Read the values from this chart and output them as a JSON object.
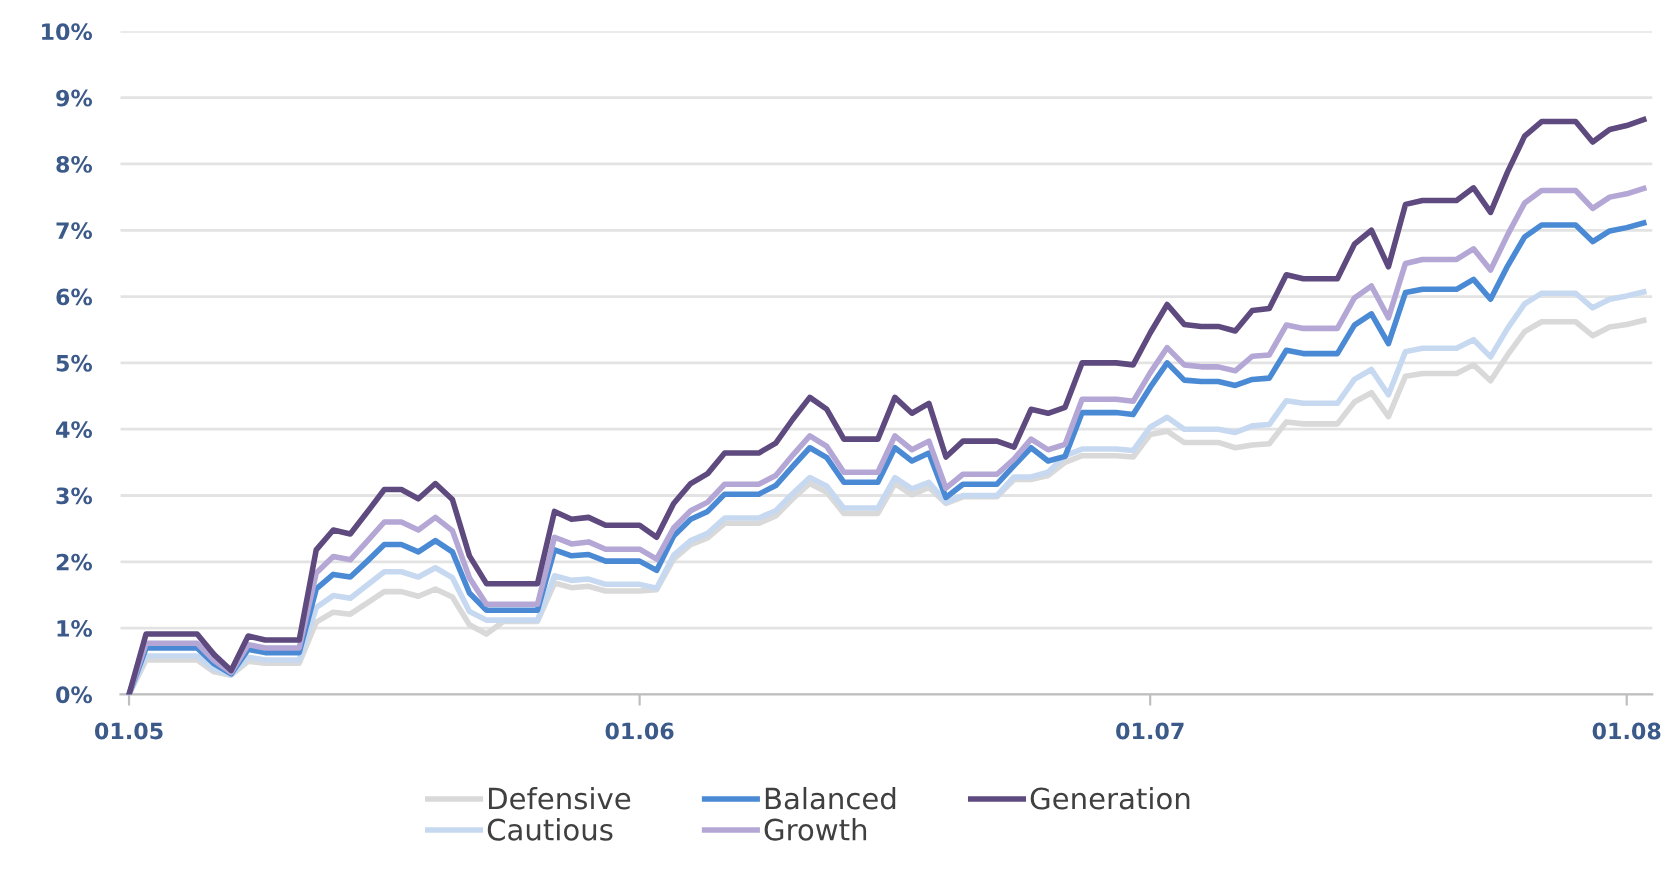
{
  "chart_data": {
    "type": "line",
    "categories": [
      "01.05",
      null,
      null,
      null,
      null,
      null,
      null,
      null,
      null,
      null,
      null,
      null,
      null,
      null,
      null,
      null,
      null,
      null,
      null,
      null,
      null,
      null,
      null,
      null,
      null,
      null,
      null,
      null,
      null,
      null,
      "01.06",
      null,
      null,
      null,
      null,
      null,
      null,
      null,
      null,
      null,
      null,
      null,
      null,
      null,
      null,
      null,
      null,
      null,
      null,
      null,
      null,
      null,
      null,
      null,
      null,
      null,
      null,
      null,
      null,
      null,
      "01.07",
      null,
      null,
      null,
      null,
      null,
      null,
      null,
      null,
      null,
      null,
      null,
      null,
      null,
      null,
      null,
      null,
      null,
      null,
      null,
      null,
      null,
      null,
      null,
      null,
      null,
      null,
      null,
      "01.08",
      null
    ],
    "ylim": [
      0,
      10
    ],
    "yticks": [
      {
        "value": 0,
        "label": "0%"
      },
      {
        "value": 1,
        "label": "1%"
      },
      {
        "value": 2,
        "label": "2%"
      },
      {
        "value": 3,
        "label": "3%"
      },
      {
        "value": 4,
        "label": "4%"
      },
      {
        "value": 5,
        "label": "5%"
      },
      {
        "value": 6,
        "label": "6%"
      },
      {
        "value": 7,
        "label": "7%"
      },
      {
        "value": 8,
        "label": "8%"
      },
      {
        "value": 9,
        "label": "9%"
      },
      {
        "value": 10,
        "label": "10%"
      }
    ],
    "grid": "y",
    "legend": "bottom",
    "marker": "none",
    "line_style": "solid",
    "series": [
      {
        "name": "Defensive",
        "color": "#d9d9d9",
        "values": [
          0,
          0.52,
          0.52,
          0.52,
          0.52,
          0.34,
          0.29,
          0.5,
          0.47,
          0.47,
          0.47,
          1.09,
          1.24,
          1.21,
          1.38,
          1.55,
          1.55,
          1.48,
          1.59,
          1.47,
          1.05,
          0.91,
          1.1,
          1.1,
          1.1,
          1.68,
          1.61,
          1.63,
          1.56,
          1.56,
          1.56,
          1.58,
          2.04,
          2.26,
          2.36,
          2.58,
          2.58,
          2.58,
          2.69,
          2.95,
          3.18,
          3.05,
          2.73,
          2.73,
          2.73,
          3.18,
          3.01,
          3.12,
          2.88,
          2.98,
          2.98,
          2.98,
          3.24,
          3.24,
          3.3,
          3.5,
          3.6,
          3.6,
          3.6,
          3.58,
          3.92,
          3.97,
          3.8,
          3.8,
          3.8,
          3.72,
          3.76,
          3.78,
          4.11,
          4.08,
          4.08,
          4.08,
          4.41,
          4.55,
          4.19,
          4.8,
          4.84,
          4.84,
          4.84,
          4.97,
          4.73,
          5.12,
          5.47,
          5.62,
          5.62,
          5.62,
          5.41,
          5.54,
          5.58,
          5.64
        ]
      },
      {
        "name": "Cautious",
        "color": "#c6d9f0",
        "values": [
          0,
          0.58,
          0.58,
          0.58,
          0.58,
          0.38,
          0.3,
          0.56,
          0.52,
          0.52,
          0.52,
          1.31,
          1.49,
          1.45,
          1.65,
          1.85,
          1.85,
          1.77,
          1.91,
          1.76,
          1.25,
          1.12,
          1.12,
          1.12,
          1.12,
          1.79,
          1.72,
          1.74,
          1.66,
          1.66,
          1.66,
          1.6,
          2.1,
          2.32,
          2.43,
          2.66,
          2.66,
          2.66,
          2.77,
          3.03,
          3.27,
          3.14,
          2.81,
          2.81,
          2.81,
          3.27,
          3.1,
          3.2,
          2.9,
          3.0,
          3.0,
          3.0,
          3.28,
          3.28,
          3.35,
          3.6,
          3.7,
          3.7,
          3.7,
          3.68,
          4.03,
          4.18,
          4.0,
          4.0,
          4.0,
          3.95,
          4.05,
          4.07,
          4.43,
          4.39,
          4.39,
          4.39,
          4.75,
          4.9,
          4.52,
          5.17,
          5.22,
          5.22,
          5.22,
          5.35,
          5.09,
          5.52,
          5.89,
          6.05,
          6.05,
          6.05,
          5.83,
          5.96,
          6.01,
          6.07
        ]
      },
      {
        "name": "Balanced",
        "color": "#4a8ad4",
        "values": [
          0,
          0.7,
          0.7,
          0.7,
          0.7,
          0.46,
          0.31,
          0.68,
          0.63,
          0.63,
          0.63,
          1.59,
          1.81,
          1.77,
          2.01,
          2.26,
          2.26,
          2.15,
          2.32,
          2.15,
          1.53,
          1.27,
          1.27,
          1.27,
          1.27,
          2.18,
          2.09,
          2.11,
          2.01,
          2.01,
          2.01,
          1.87,
          2.39,
          2.64,
          2.76,
          3.02,
          3.02,
          3.02,
          3.15,
          3.44,
          3.72,
          3.57,
          3.2,
          3.2,
          3.2,
          3.72,
          3.52,
          3.64,
          2.97,
          3.17,
          3.17,
          3.17,
          3.45,
          3.72,
          3.52,
          3.59,
          4.25,
          4.25,
          4.25,
          4.22,
          4.63,
          5.0,
          4.74,
          4.72,
          4.72,
          4.66,
          4.75,
          4.77,
          5.19,
          5.14,
          5.14,
          5.14,
          5.57,
          5.74,
          5.29,
          6.06,
          6.11,
          6.11,
          6.11,
          6.26,
          5.96,
          6.46,
          6.9,
          7.08,
          7.08,
          7.08,
          6.83,
          6.99,
          7.04,
          7.11
        ]
      },
      {
        "name": "Growth",
        "color": "#b4a7d6",
        "values": [
          0,
          0.77,
          0.77,
          0.77,
          0.77,
          0.51,
          0.33,
          0.75,
          0.7,
          0.7,
          0.7,
          1.83,
          2.08,
          2.03,
          2.31,
          2.6,
          2.6,
          2.48,
          2.67,
          2.47,
          1.76,
          1.36,
          1.36,
          1.36,
          1.36,
          2.37,
          2.27,
          2.3,
          2.19,
          2.19,
          2.19,
          2.04,
          2.51,
          2.77,
          2.9,
          3.17,
          3.17,
          3.17,
          3.3,
          3.61,
          3.9,
          3.74,
          3.35,
          3.35,
          3.35,
          3.9,
          3.69,
          3.82,
          3.11,
          3.32,
          3.32,
          3.32,
          3.55,
          3.85,
          3.69,
          3.77,
          4.45,
          4.45,
          4.45,
          4.42,
          4.85,
          5.23,
          4.97,
          4.94,
          4.94,
          4.88,
          5.1,
          5.12,
          5.57,
          5.52,
          5.52,
          5.52,
          5.98,
          6.16,
          5.68,
          6.5,
          6.56,
          6.56,
          6.56,
          6.72,
          6.4,
          6.93,
          7.41,
          7.6,
          7.6,
          7.6,
          7.33,
          7.5,
          7.55,
          7.63
        ]
      },
      {
        "name": "Generation",
        "color": "#5e4a7e",
        "values": [
          0,
          0.91,
          0.91,
          0.91,
          0.91,
          0.6,
          0.36,
          0.88,
          0.82,
          0.82,
          0.82,
          2.18,
          2.48,
          2.42,
          2.75,
          3.09,
          3.09,
          2.95,
          3.18,
          2.94,
          2.09,
          1.67,
          1.67,
          1.67,
          1.67,
          2.76,
          2.64,
          2.67,
          2.55,
          2.55,
          2.55,
          2.37,
          2.88,
          3.18,
          3.33,
          3.64,
          3.64,
          3.64,
          3.79,
          4.15,
          4.48,
          4.3,
          3.85,
          3.85,
          3.85,
          4.48,
          4.24,
          4.39,
          3.58,
          3.82,
          3.82,
          3.82,
          3.73,
          4.3,
          4.24,
          4.33,
          5.0,
          5.0,
          5.0,
          4.97,
          5.45,
          5.88,
          5.58,
          5.55,
          5.55,
          5.48,
          5.79,
          5.82,
          6.33,
          6.27,
          6.27,
          6.27,
          6.79,
          7.0,
          6.45,
          7.39,
          7.45,
          7.45,
          7.45,
          7.64,
          7.27,
          7.88,
          8.42,
          8.64,
          8.64,
          8.64,
          8.33,
          8.52,
          8.58,
          8.67
        ]
      }
    ]
  }
}
